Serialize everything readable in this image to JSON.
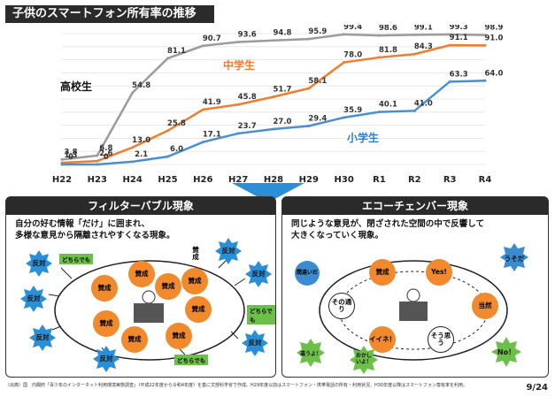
{
  "header": {
    "title": "子供のスマートフォン所有率の推移"
  },
  "chart_data": {
    "type": "line",
    "categories": [
      "H22",
      "H23",
      "H24",
      "H25",
      "H26",
      "H27",
      "H28",
      "H29",
      "H30",
      "R1",
      "R2",
      "R3",
      "R4"
    ],
    "series": [
      {
        "name": "高校生",
        "color": "#9b9b9b",
        "values": [
          3.8,
          6.8,
          54.8,
          81.1,
          90.7,
          93.6,
          94.8,
          95.9,
          99.4,
          98.6,
          99.1,
          99.3,
          98.9
        ]
      },
      {
        "name": "中学生",
        "color": "#ef7d2f",
        "values": [
          1.3,
          2.6,
          13.0,
          25.8,
          41.9,
          45.8,
          51.7,
          58.1,
          78.0,
          81.8,
          84.3,
          91.1,
          91.0
        ]
      },
      {
        "name": "小学生",
        "color": "#4a8fd2",
        "values": [
          0,
          0,
          2.1,
          6.0,
          17.1,
          23.7,
          27.0,
          29.4,
          35.9,
          40.1,
          41.0,
          63.3,
          64.0
        ]
      }
    ],
    "ylim": [
      0,
      100
    ],
    "grid": true
  },
  "filter": {
    "title": "フィルターバブル現象",
    "line1": "自分の好む情報「だけ」に囲まれ、",
    "line2": "多様な意見から隔離されやすくなる現象。",
    "inner_label": "賛成",
    "outer_label": "反対",
    "either_label": "どちらでも"
  },
  "echo": {
    "title": "エコーチェンバー現象",
    "line1": "同じような意見が、閉ざされた空間の中で反響して",
    "line2": "大きくなっていく現象。",
    "nodes": {
      "agree": "賛成",
      "yes": "Yes!",
      "sono": "その通り",
      "touzen": "当然",
      "iine": "イイネ！",
      "sou": "そう思う"
    },
    "outside": {
      "machigai": "間違いだ",
      "usoda": "うそだ",
      "chigau": "違うよ！",
      "okashii": "おかしいよ！",
      "no": "No！"
    }
  },
  "footnote": "（出典）国　内閣府「青少年のインターネット利用環境実態調査」（平成22年度から令和4年度）を基に文部科学省で作成。H29年度以前はスマートフォン・携帯電話の所有・利用状況、H30年度以降はスマートフォン専有率を利用。",
  "page": "9/24"
}
